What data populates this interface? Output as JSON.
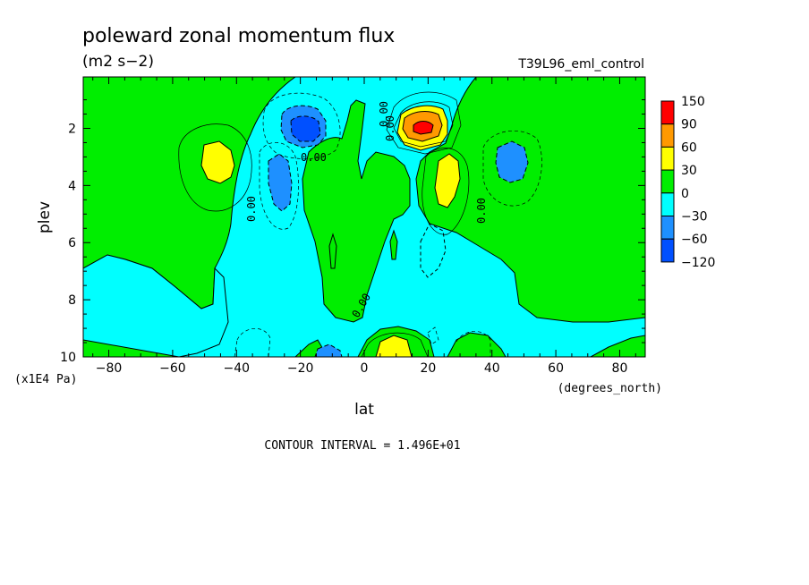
{
  "chart_data": {
    "type": "heatmap",
    "title": "poleward zonal momentum flux",
    "units": "(m2 s−2)",
    "run_label": "T39L96_eml_control",
    "xlabel": "lat",
    "xunits": "(degrees_north)",
    "ylabel": "plev",
    "yunits": "(x1E4 Pa)",
    "xlim": [
      -88,
      88
    ],
    "ylim": [
      0.2,
      10
    ],
    "y_inverted": true,
    "x_ticks": [
      -80,
      -60,
      -40,
      -20,
      0,
      20,
      40,
      60,
      80
    ],
    "y_ticks": [
      2,
      4,
      6,
      8,
      10
    ],
    "contour_interval_text": "CONTOUR INTERVAL = 1.496E+01",
    "contour_labels": [
      "0.00",
      "0.00",
      "0.00",
      "0.00",
      "0.00",
      "0.00"
    ],
    "legend": {
      "placement": "right",
      "levels": [
        "150",
        "90",
        "60",
        "30",
        "0",
        "−30",
        "−60",
        "−120"
      ],
      "colors": [
        "#ff0000",
        "#ff9900",
        "#ffff00",
        "#00ee00",
        "#00ffff",
        "#1e90ff",
        "#0050ff"
      ]
    },
    "colors": {
      "negative_light": "#00ffff",
      "negative_mid": "#1e90ff",
      "negative_strong": "#0050ff",
      "positive_light": "#00ee00",
      "positive_mid": "#ffff00",
      "positive_strong": "#ff9900",
      "positive_max": "#ff0000"
    },
    "features": [
      {
        "sign": "positive",
        "lat": -46,
        "plev": 3.1,
        "peak": 40
      },
      {
        "sign": "negative",
        "lat": -18,
        "plev": 2.0,
        "peak": -90
      },
      {
        "sign": "negative",
        "lat": -25,
        "plev": 3.9,
        "peak": -50
      },
      {
        "sign": "positive",
        "lat": 18,
        "plev": 2.0,
        "peak": 160
      },
      {
        "sign": "positive",
        "lat": 25,
        "plev": 3.8,
        "peak": 45
      },
      {
        "sign": "negative",
        "lat": 46,
        "plev": 2.9,
        "peak": -45
      },
      {
        "sign": "negative",
        "lat": -10,
        "plev": 9.9,
        "peak": -40
      },
      {
        "sign": "positive",
        "lat": 12,
        "plev": 9.9,
        "peak": 35
      }
    ]
  }
}
